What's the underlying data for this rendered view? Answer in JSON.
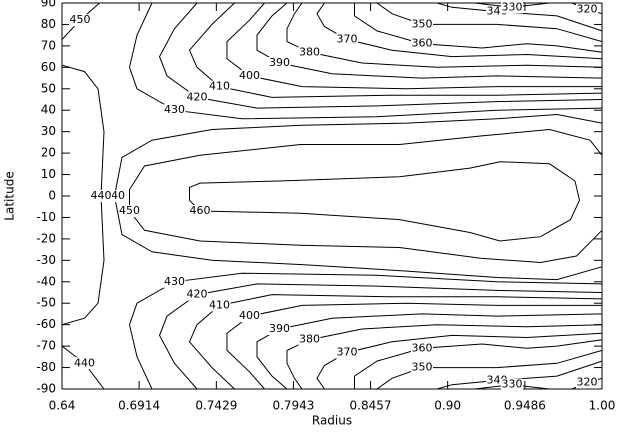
{
  "chart_data": {
    "type": "contour",
    "xlabel": "Radius",
    "ylabel": "Latitude",
    "color": "#000000",
    "xlim": [
      0.64,
      1.0
    ],
    "ylim": [
      -90,
      90
    ],
    "xticks": [
      0.64,
      0.6914,
      0.7429,
      0.7943,
      0.8457,
      {
        "value": 0.8971,
        "label": "0.90"
      },
      0.9486,
      {
        "value": 1.0,
        "label": "1.00"
      }
    ],
    "yticks": [
      -90,
      -80,
      -70,
      -60,
      -50,
      -40,
      -30,
      -20,
      -10,
      0,
      10,
      20,
      30,
      40,
      50,
      60,
      70,
      80,
      90
    ],
    "contours": [
      {
        "level": 460,
        "x": [
          0.982,
          0.965,
          0.932,
          0.912,
          0.865,
          0.785,
          0.732,
          0.725,
          0.725,
          0.732,
          0.799,
          0.865,
          0.912,
          0.932,
          0.959,
          0.979,
          0.985,
          0.982
        ],
        "y": [
          7,
          15,
          16,
          13,
          9,
          7,
          6,
          4,
          -2,
          -7,
          -8,
          -11,
          -17,
          -21,
          -19,
          -11,
          -2,
          7
        ]
      },
      {
        "level": 450,
        "x": [
          1.0,
          0.992,
          0.965,
          0.919,
          0.865,
          0.799,
          0.732,
          0.695,
          0.685,
          0.685,
          0.695,
          0.732,
          0.799,
          0.865,
          0.919,
          0.959,
          0.983,
          1.0
        ],
        "y": [
          19,
          26,
          31,
          28,
          24,
          24,
          19,
          14,
          3,
          -7,
          -16,
          -21,
          -23,
          -24,
          -29,
          -31,
          -28,
          -16
        ]
      },
      {
        "level": 440,
        "x": [
          1.0,
          0.97,
          0.93,
          0.87,
          0.8,
          0.74,
          0.7,
          0.68,
          0.675,
          0.68,
          0.7,
          0.74,
          0.8,
          0.87,
          0.93,
          0.97,
          1.0
        ],
        "y": [
          34,
          38,
          36,
          34,
          33,
          31,
          26,
          18,
          0,
          -18,
          -26,
          -30,
          -32,
          -35,
          -38,
          -39,
          -33
        ]
      },
      {
        "level": 440,
        "x": [
          0.64,
          0.655,
          0.664,
          0.668,
          0.666,
          0.668,
          0.664,
          0.655,
          0.64
        ],
        "y": [
          61,
          58,
          50,
          30,
          0,
          -30,
          -50,
          -57,
          -60
        ]
      },
      {
        "level": 450,
        "x": [
          0.64,
          0.652,
          0.665
        ],
        "y": [
          73,
          82,
          90
        ]
      },
      {
        "level": 440,
        "x": [
          0.64,
          0.655,
          0.668
        ],
        "y": [
          -70,
          -78,
          -90
        ]
      },
      {
        "level": 430,
        "x": [
          1.0,
          0.93,
          0.85,
          0.76,
          0.715,
          0.69,
          0.685,
          0.69,
          0.7
        ],
        "y": [
          41,
          40,
          37,
          36,
          40,
          50,
          60,
          75,
          90
        ]
      },
      {
        "level": 420,
        "x": [
          1.0,
          0.93,
          0.85,
          0.77,
          0.73,
          0.71,
          0.705,
          0.715,
          0.73
        ],
        "y": [
          45,
          44,
          42,
          41,
          46,
          56,
          65,
          78,
          90
        ]
      },
      {
        "level": 410,
        "x": [
          1.0,
          0.93,
          0.86,
          0.78,
          0.745,
          0.73,
          0.725,
          0.74,
          0.755
        ],
        "y": [
          48,
          47,
          47,
          46,
          51,
          60,
          68,
          80,
          90
        ]
      },
      {
        "level": 400,
        "x": [
          1.0,
          0.93,
          0.87,
          0.8,
          0.765,
          0.75,
          0.75,
          0.765,
          0.775
        ],
        "y": [
          51,
          51,
          50,
          51,
          56,
          64,
          72,
          82,
          90
        ]
      },
      {
        "level": 390,
        "x": [
          1.0,
          0.93,
          0.88,
          0.82,
          0.785,
          0.77,
          0.77,
          0.78,
          0.79
        ],
        "y": [
          55,
          56,
          55,
          57,
          62,
          68,
          75,
          84,
          90
        ]
      },
      {
        "level": 380,
        "x": [
          1.0,
          0.95,
          0.89,
          0.84,
          0.805,
          0.79,
          0.79,
          0.795,
          0.8
        ],
        "y": [
          60,
          61,
          60,
          62,
          67,
          72,
          78,
          85,
          90
        ]
      },
      {
        "level": 370,
        "x": [
          1.0,
          0.95,
          0.9,
          0.86,
          0.83,
          0.815,
          0.81,
          0.815
        ],
        "y": [
          64,
          66,
          65,
          68,
          73,
          79,
          85,
          90
        ]
      },
      {
        "level": 360,
        "x": [
          1.0,
          0.97,
          0.95,
          0.92,
          0.88,
          0.85,
          0.835,
          0.835
        ],
        "y": [
          67,
          70,
          71,
          69,
          71,
          77,
          84,
          90
        ]
      },
      {
        "level": 350,
        "x": [
          1.0,
          0.97,
          0.93,
          0.88,
          0.86,
          0.85
        ],
        "y": [
          72,
          78,
          80,
          80,
          85,
          90
        ]
      },
      {
        "level": 340,
        "x": [
          1.0,
          0.97,
          0.93,
          0.9,
          0.89
        ],
        "y": [
          77,
          84,
          86,
          88,
          90
        ]
      },
      {
        "level": 330,
        "x": [
          0.915,
          0.94,
          0.965
        ],
        "y": [
          90,
          88,
          90
        ]
      },
      {
        "level": 320,
        "x": [
          0.98,
          0.99,
          1.0
        ],
        "y": [
          90,
          87,
          85
        ]
      },
      {
        "level": 430,
        "x": [
          1.0,
          0.93,
          0.85,
          0.76,
          0.715,
          0.69,
          0.685,
          0.69,
          0.7
        ],
        "y": [
          -41,
          -40,
          -37,
          -36,
          -40,
          -50,
          -60,
          -75,
          -90
        ]
      },
      {
        "level": 420,
        "x": [
          1.0,
          0.93,
          0.85,
          0.77,
          0.73,
          0.71,
          0.705,
          0.715,
          0.73
        ],
        "y": [
          -45,
          -44,
          -42,
          -41,
          -46,
          -56,
          -65,
          -78,
          -90
        ]
      },
      {
        "level": 410,
        "x": [
          1.0,
          0.93,
          0.86,
          0.78,
          0.745,
          0.73,
          0.725,
          0.74,
          0.755
        ],
        "y": [
          -48,
          -47,
          -47,
          -46,
          -51,
          -60,
          -68,
          -80,
          -90
        ]
      },
      {
        "level": 400,
        "x": [
          1.0,
          0.93,
          0.87,
          0.8,
          0.765,
          0.75,
          0.75,
          0.765,
          0.775
        ],
        "y": [
          -51,
          -51,
          -50,
          -51,
          -56,
          -64,
          -72,
          -82,
          -90
        ]
      },
      {
        "level": 390,
        "x": [
          1.0,
          0.93,
          0.88,
          0.82,
          0.785,
          0.77,
          0.77,
          0.78,
          0.79
        ],
        "y": [
          -55,
          -56,
          -55,
          -57,
          -62,
          -68,
          -75,
          -84,
          -90
        ]
      },
      {
        "level": 380,
        "x": [
          1.0,
          0.95,
          0.89,
          0.84,
          0.805,
          0.79,
          0.79,
          0.795,
          0.8
        ],
        "y": [
          -60,
          -61,
          -60,
          -62,
          -67,
          -72,
          -78,
          -85,
          -90
        ]
      },
      {
        "level": 370,
        "x": [
          1.0,
          0.95,
          0.9,
          0.86,
          0.83,
          0.815,
          0.81,
          0.815
        ],
        "y": [
          -64,
          -66,
          -65,
          -68,
          -73,
          -79,
          -85,
          -90
        ]
      },
      {
        "level": 360,
        "x": [
          1.0,
          0.97,
          0.95,
          0.92,
          0.88,
          0.85,
          0.835,
          0.835
        ],
        "y": [
          -67,
          -70,
          -71,
          -69,
          -71,
          -77,
          -84,
          -90
        ]
      },
      {
        "level": 350,
        "x": [
          1.0,
          0.97,
          0.93,
          0.88,
          0.86,
          0.85
        ],
        "y": [
          -72,
          -78,
          -80,
          -80,
          -85,
          -90
        ]
      },
      {
        "level": 340,
        "x": [
          1.0,
          0.97,
          0.93,
          0.9,
          0.89
        ],
        "y": [
          -77,
          -84,
          -86,
          -88,
          -90
        ]
      },
      {
        "level": 330,
        "x": [
          0.915,
          0.94,
          0.965
        ],
        "y": [
          -90,
          -88,
          -90
        ]
      },
      {
        "level": 320,
        "x": [
          0.98,
          0.99,
          1.0
        ],
        "y": [
          -90,
          -87,
          -85
        ]
      }
    ]
  }
}
